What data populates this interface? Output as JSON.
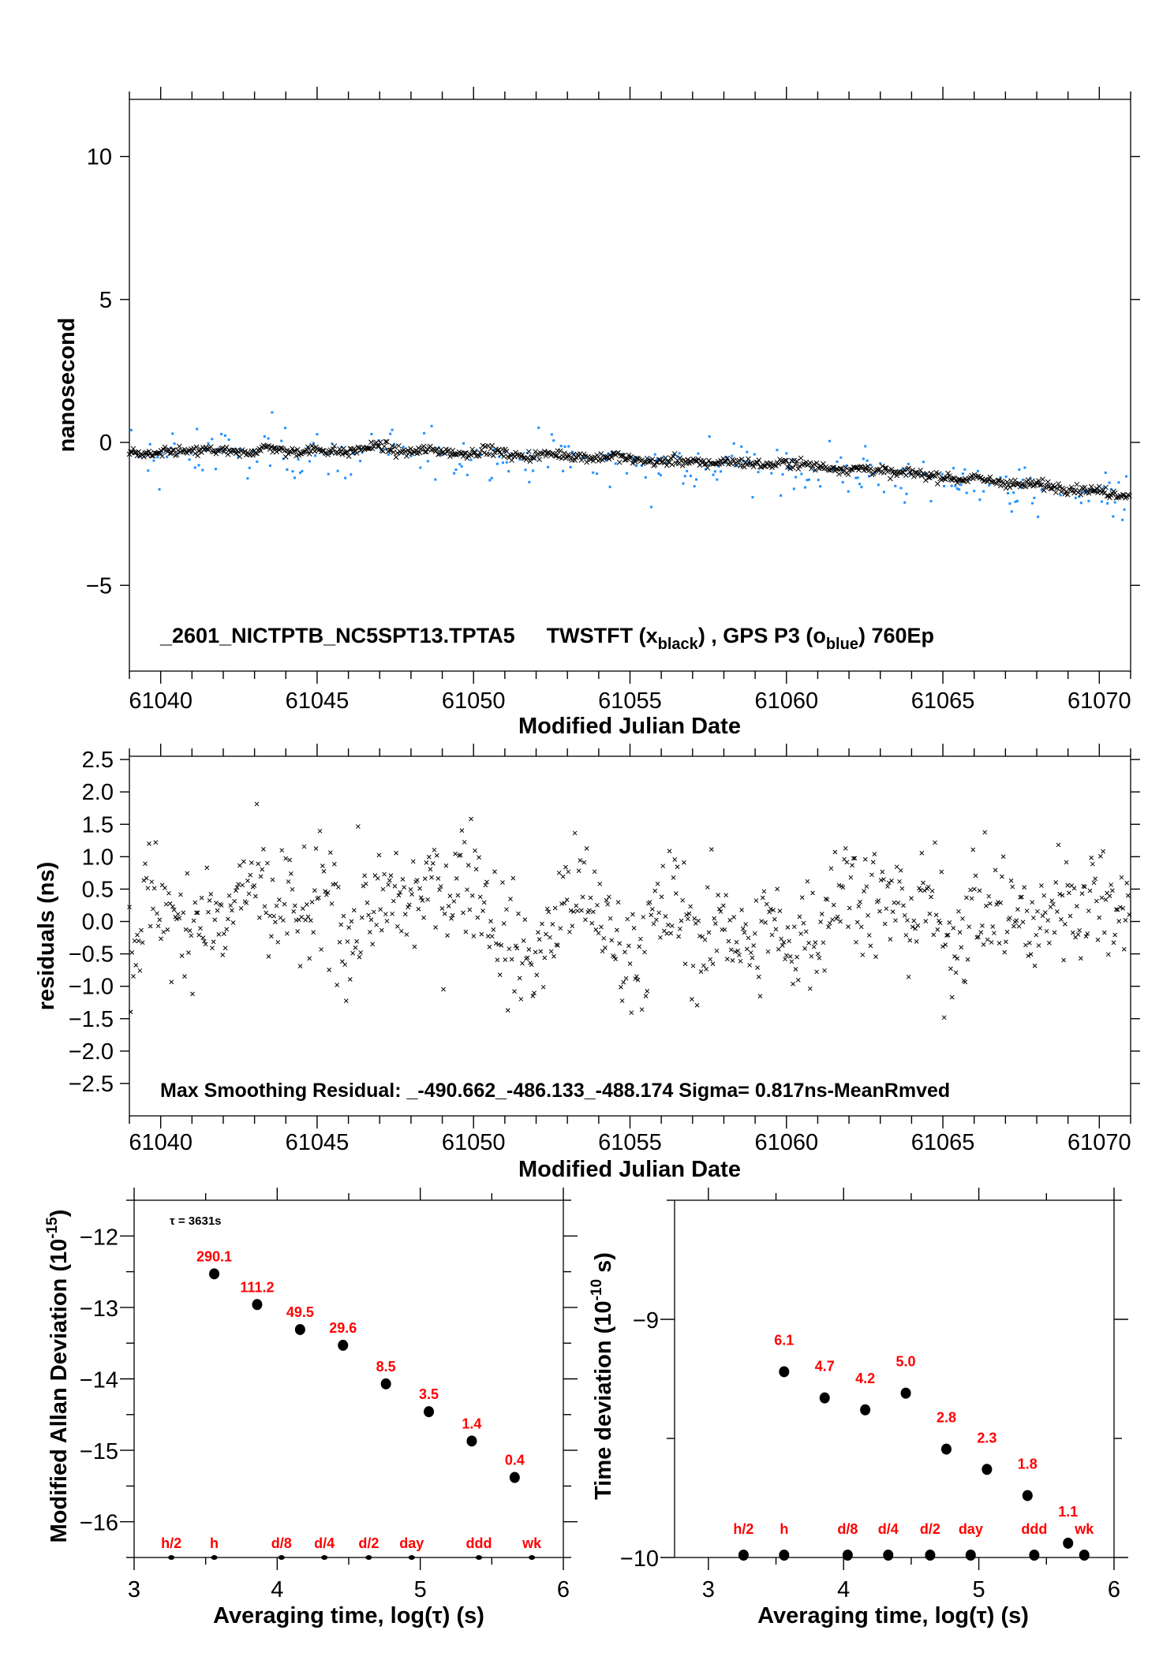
{
  "colors": {
    "twstft": "#000000",
    "gps": "#1e90ff",
    "labels": "#ff0000"
  },
  "chart_data": [
    {
      "type": "scatter",
      "title": "_2601_NICTPTB_NC5SPT13.TPTA5",
      "legend_main": "_2601_NICTPTB_NC5SPT13.TPTA5",
      "legend_tw": "TWSTFT (x",
      "legend_tw_sub": "black",
      "legend_sep": ") ,  GPS P3 (o",
      "legend_gps_sub": "blue",
      "legend_end": ")  760Ep",
      "xlabel": "Modified Julian Date",
      "ylabel": "nanosecond",
      "xlim": [
        61039,
        61071
      ],
      "ylim": [
        -8,
        12
      ],
      "xticks": [
        "61040",
        "61045",
        "61050",
        "61055",
        "61060",
        "61065",
        "61070"
      ],
      "yticks": [
        "10",
        "5",
        "0",
        "−5"
      ],
      "ytick_values": [
        10,
        5,
        0,
        -5
      ],
      "sample_step_days": 0.5,
      "series": [
        {
          "name": "TWSTFT",
          "marker": "x",
          "values": [
            -0.35,
            -0.45,
            -0.4,
            -0.3,
            -0.35,
            -0.25,
            -0.3,
            -0.4,
            -0.3,
            -0.15,
            -0.35,
            -0.3,
            -0.25,
            -0.3,
            -0.35,
            -0.2,
            -0.1,
            -0.3,
            -0.35,
            -0.25,
            -0.3,
            -0.4,
            -0.35,
            -0.25,
            -0.4,
            -0.5,
            -0.45,
            -0.4,
            -0.45,
            -0.5,
            -0.55,
            -0.45,
            -0.6,
            -0.65,
            -0.7,
            -0.6,
            -0.7,
            -0.75,
            -0.65,
            -0.7,
            -0.75,
            -0.8,
            -0.7,
            -0.75,
            -0.85,
            -0.9,
            -0.95,
            -0.9,
            -1.0,
            -1.1,
            -1.05,
            -1.15,
            -1.2,
            -1.3,
            -1.25,
            -1.35,
            -1.4,
            -1.5,
            -1.45,
            -1.55,
            -1.6,
            -1.65,
            -1.7,
            -1.8,
            -1.85
          ]
        },
        {
          "name": "GPS P3",
          "marker": "dot",
          "values": [
            -0.2,
            -0.5,
            -0.6,
            -0.3,
            -0.5,
            -0.2,
            -0.4,
            -0.6,
            -0.4,
            -0.1,
            -0.5,
            -0.4,
            -0.3,
            -0.5,
            -0.4,
            -0.3,
            -0.1,
            -0.5,
            -0.4,
            -0.3,
            -0.5,
            -0.6,
            -0.3,
            -0.2,
            -0.6,
            -0.7,
            -0.5,
            -0.4,
            -0.6,
            -0.6,
            -0.7,
            -0.5,
            -0.8,
            -0.9,
            -0.8,
            -0.6,
            -0.9,
            -0.9,
            -0.7,
            -0.8,
            -0.9,
            -1.0,
            -0.8,
            -1.0,
            -1.1,
            -1.0,
            -1.2,
            -1.0,
            -1.2,
            -1.3,
            -1.2,
            -1.4,
            -1.4,
            -1.5,
            -1.3,
            -1.6,
            -1.6,
            -1.7,
            -1.6,
            -1.8,
            -1.8,
            -1.9,
            -1.9,
            -2.0,
            -2.0
          ]
        }
      ]
    },
    {
      "type": "scatter",
      "xlabel": "Modified Julian Date",
      "ylabel": "residuals (ns)",
      "annotation": "Max Smoothing Residual: _-490.662_-486.133_-488.174  Sigma= 0.817ns-MeanRmved",
      "xlim": [
        61039,
        61071
      ],
      "ylim": [
        -3.0,
        2.55
      ],
      "xticks": [
        "61040",
        "61045",
        "61050",
        "61055",
        "61060",
        "61065",
        "61070"
      ],
      "yticks": [
        "2.5",
        "2.0",
        "1.5",
        "1.0",
        "0.5",
        "0.0",
        "−0.5",
        "−1.0",
        "−1.5",
        "−2.0",
        "−2.5"
      ],
      "ytick_values": [
        2.5,
        2.0,
        1.5,
        1.0,
        0.5,
        0.0,
        -0.5,
        -1.0,
        -1.5,
        -2.0,
        -2.5
      ],
      "sample_step_days": 0.5,
      "series": [
        {
          "name": "residuals",
          "marker": "x",
          "sigma": 0.817,
          "values": [
            -0.6,
            0.3,
            0.4,
            -0.2,
            0.1,
            0.2,
            -0.3,
            0.5,
            0.6,
            0.0,
            0.4,
            -0.1,
            0.2,
            0.5,
            -0.4,
            0.3,
            0.1,
            0.4,
            0.2,
            0.6,
            0.3,
            0.7,
            0.8,
            0.2,
            -0.3,
            -0.5,
            -0.6,
            -0.2,
            0.5,
            0.3,
            0.2,
            -0.4,
            -0.5,
            -0.3,
            0.1,
            0.3,
            -0.2,
            -0.4,
            0.2,
            -0.3,
            -0.5,
            0.1,
            -0.6,
            0.0,
            -0.2,
            0.5,
            0.6,
            0.4,
            0.2,
            0.3,
            0.0,
            0.4,
            -0.3,
            -0.2,
            0.3,
            0.1,
            0.2,
            0.0,
            -0.2,
            0.3,
            0.4,
            0.2,
            0.5,
            0.3,
            0.2
          ]
        }
      ]
    },
    {
      "type": "scatter",
      "xlabel": "Averaging time, log(τ) (s)",
      "ylabel": "Modified Allan Deviation (10",
      "ylabel_sup": "-15",
      "ylabel_end": ")",
      "tau_note": "τ = 3631s",
      "xlim": [
        3,
        6
      ],
      "ylim": [
        -16.5,
        -11.5
      ],
      "xticks": [
        "3",
        "4",
        "5",
        "6"
      ],
      "yticks": [
        "−12",
        "−13",
        "−14",
        "−15",
        "−16"
      ],
      "ytick_values": [
        -12,
        -13,
        -14,
        -15,
        -16
      ],
      "x": [
        3.56,
        3.86,
        4.16,
        4.46,
        4.76,
        5.06,
        5.36,
        5.66
      ],
      "y": [
        -12.53,
        -12.96,
        -13.31,
        -13.53,
        -14.07,
        -14.46,
        -14.87,
        -15.38
      ],
      "point_labels": [
        "290.1",
        "111.2",
        "49.5",
        "29.6",
        "8.5",
        "3.5",
        "1.4",
        "0.4"
      ],
      "markers": {
        "labels": [
          "h/2",
          "h",
          "d/8",
          "d/4",
          "d/2",
          "day",
          "ddd",
          "wk"
        ],
        "x": [
          3.26,
          3.56,
          4.03,
          4.33,
          4.64,
          4.94,
          5.41,
          5.78
        ]
      }
    },
    {
      "type": "scatter",
      "xlabel": "Averaging time, log(τ) (s)",
      "ylabel": "Time deviation (10",
      "ylabel_sup": "-10",
      "ylabel_end": " s)",
      "xlim": [
        2.75,
        6.0
      ],
      "ylim": [
        -10,
        -8.5
      ],
      "xticks": [
        "3",
        "4",
        "5",
        "6"
      ],
      "yticks": [
        "−9",
        "−10"
      ],
      "ytick_values": [
        -9,
        -10
      ],
      "x": [
        3.56,
        3.86,
        4.16,
        4.46,
        4.76,
        5.06,
        5.36,
        5.66
      ],
      "y": [
        -9.22,
        -9.33,
        -9.38,
        -9.31,
        -9.545,
        -9.63,
        -9.74,
        -9.94
      ],
      "point_labels": [
        "6.1",
        "4.7",
        "4.2",
        "5.0",
        "2.8",
        "2.3",
        "1.8",
        "1.1"
      ],
      "markers": {
        "labels": [
          "h/2",
          "h",
          "d/8",
          "d/4",
          "d/2",
          "day",
          "ddd",
          "wk"
        ],
        "x": [
          3.26,
          3.56,
          4.03,
          4.33,
          4.64,
          4.94,
          5.41,
          5.78
        ]
      }
    }
  ]
}
